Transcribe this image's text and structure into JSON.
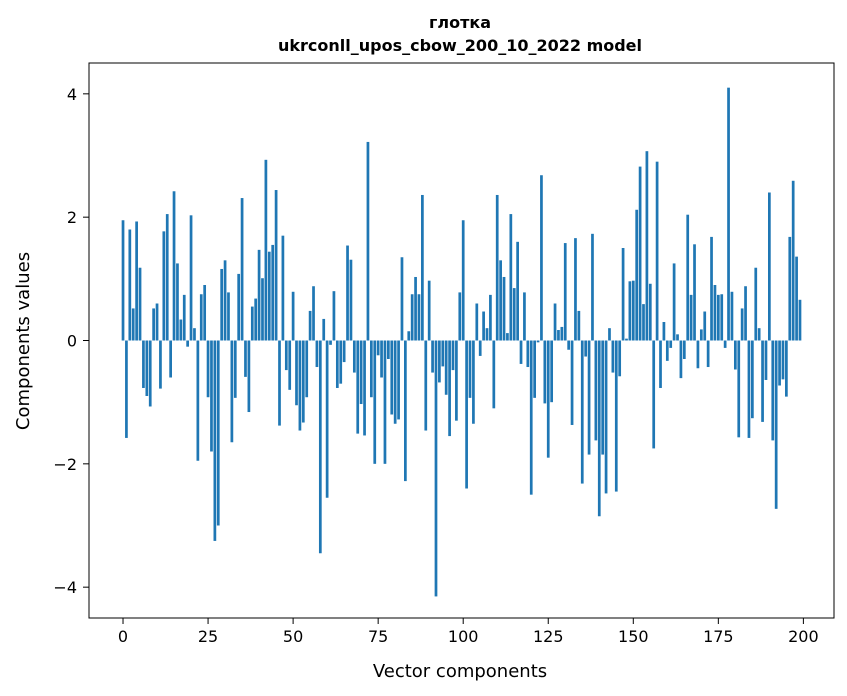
{
  "chart_data": {
    "type": "bar",
    "title": "глотка",
    "subtitle": "ukrconll_upos_cbow_200_10_2022 model",
    "xlabel": "Vector components",
    "ylabel": "Components values",
    "xlim": [
      -10,
      209
    ],
    "ylim": [
      -4.5,
      4.5
    ],
    "xticks": [
      0,
      25,
      50,
      75,
      100,
      125,
      150,
      175,
      200
    ],
    "yticks": [
      -4,
      -2,
      0,
      2,
      4
    ],
    "ytick_labels": [
      "−4",
      "−2",
      "0",
      "2",
      "4"
    ],
    "bar_color": "#1f77b4",
    "grid": false,
    "x": [
      0,
      1,
      2,
      3,
      4,
      5,
      6,
      7,
      8,
      9,
      10,
      11,
      12,
      13,
      14,
      15,
      16,
      17,
      18,
      19,
      20,
      21,
      22,
      23,
      24,
      25,
      26,
      27,
      28,
      29,
      30,
      31,
      32,
      33,
      34,
      35,
      36,
      37,
      38,
      39,
      40,
      41,
      42,
      43,
      44,
      45,
      46,
      47,
      48,
      49,
      50,
      51,
      52,
      53,
      54,
      55,
      56,
      57,
      58,
      59,
      60,
      61,
      62,
      63,
      64,
      65,
      66,
      67,
      68,
      69,
      70,
      71,
      72,
      73,
      74,
      75,
      76,
      77,
      78,
      79,
      80,
      81,
      82,
      83,
      84,
      85,
      86,
      87,
      88,
      89,
      90,
      91,
      92,
      93,
      94,
      95,
      96,
      97,
      98,
      99,
      100,
      101,
      102,
      103,
      104,
      105,
      106,
      107,
      108,
      109,
      110,
      111,
      112,
      113,
      114,
      115,
      116,
      117,
      118,
      119,
      120,
      121,
      122,
      123,
      124,
      125,
      126,
      127,
      128,
      129,
      130,
      131,
      132,
      133,
      134,
      135,
      136,
      137,
      138,
      139,
      140,
      141,
      142,
      143,
      144,
      145,
      146,
      147,
      148,
      149,
      150,
      151,
      152,
      153,
      154,
      155,
      156,
      157,
      158,
      159,
      160,
      161,
      162,
      163,
      164,
      165,
      166,
      167,
      168,
      169,
      170,
      171,
      172,
      173,
      174,
      175,
      176,
      177,
      178,
      179,
      180,
      181,
      182,
      183,
      184,
      185,
      186,
      187,
      188,
      189,
      190,
      191,
      192,
      193,
      194,
      195,
      196,
      197,
      198,
      199
    ],
    "values": [
      1.95,
      -1.58,
      1.8,
      0.52,
      1.93,
      1.18,
      -0.77,
      -0.9,
      -1.07,
      0.52,
      0.6,
      -0.78,
      1.77,
      2.05,
      -0.6,
      2.42,
      1.25,
      0.34,
      0.74,
      -0.1,
      2.03,
      0.2,
      -1.95,
      0.75,
      0.9,
      -0.92,
      -1.8,
      -3.25,
      -3.0,
      1.16,
      1.3,
      0.78,
      -1.65,
      -0.93,
      1.08,
      2.31,
      -0.59,
      -1.16,
      0.55,
      0.68,
      1.47,
      1.01,
      2.93,
      1.44,
      1.55,
      2.44,
      -1.38,
      1.7,
      -0.48,
      -0.8,
      0.79,
      -1.05,
      -1.46,
      -1.33,
      -0.92,
      0.48,
      0.88,
      -0.43,
      -3.45,
      0.35,
      -2.55,
      -0.07,
      0.8,
      -0.77,
      -0.7,
      -0.35,
      1.54,
      1.31,
      -0.52,
      -1.51,
      -1.03,
      -1.54,
      3.22,
      -0.92,
      -2.0,
      -0.24,
      -0.6,
      -2.0,
      -0.3,
      -1.2,
      -1.35,
      -1.28,
      1.35,
      -2.28,
      0.15,
      0.75,
      1.03,
      0.75,
      2.36,
      -1.46,
      0.97,
      -0.52,
      -4.15,
      -0.68,
      -0.42,
      -0.88,
      -1.55,
      -0.48,
      -1.3,
      0.78,
      1.95,
      -2.4,
      -0.93,
      -1.35,
      0.6,
      -0.25,
      0.47,
      0.2,
      0.74,
      -1.1,
      2.36,
      1.3,
      1.03,
      0.12,
      2.05,
      0.85,
      1.6,
      -0.38,
      0.78,
      -0.43,
      -2.5,
      -0.93,
      -0.03,
      2.68,
      -1.02,
      -1.9,
      -1.0,
      0.6,
      0.17,
      0.22,
      1.58,
      -0.15,
      -1.37,
      1.66,
      0.48,
      -2.32,
      -0.26,
      -1.85,
      1.73,
      -1.62,
      -2.85,
      -1.85,
      -2.48,
      0.2,
      -0.52,
      -2.45,
      -0.58,
      1.5,
      0.03,
      0.96,
      0.97,
      2.12,
      2.82,
      0.59,
      3.07,
      0.92,
      -1.75,
      2.9,
      -0.77,
      0.3,
      -0.33,
      -0.12,
      1.25,
      0.1,
      -0.61,
      -0.3,
      2.04,
      0.74,
      1.56,
      -0.45,
      0.18,
      0.47,
      -0.43,
      1.68,
      0.9,
      0.74,
      0.75,
      -0.12,
      4.1,
      0.79,
      -0.47,
      -1.57,
      0.52,
      0.88,
      -1.58,
      -1.26,
      1.18,
      0.2,
      -1.32,
      -0.64,
      2.4,
      -1.62,
      -2.73,
      -0.73,
      -0.63,
      -0.91,
      1.68,
      2.59,
      1.36,
      0.66
    ]
  }
}
